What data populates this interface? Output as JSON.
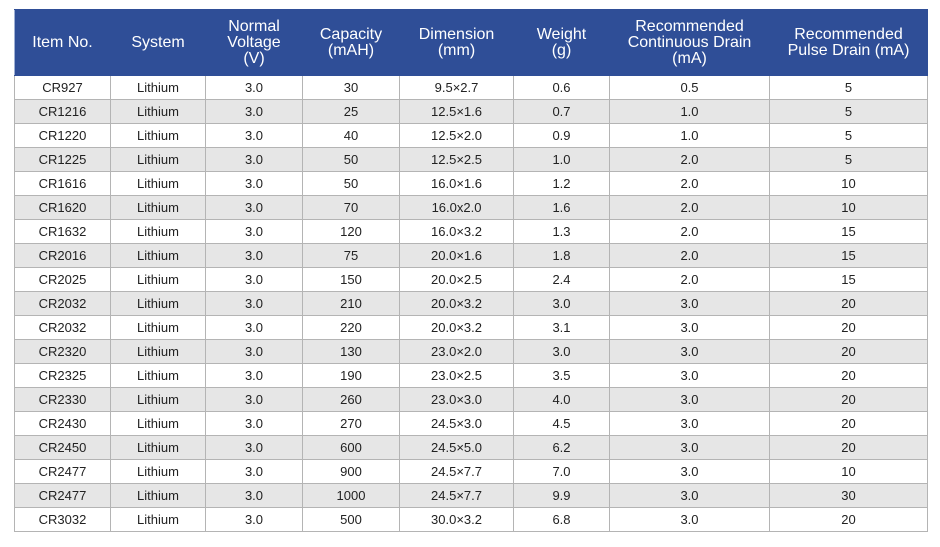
{
  "table": {
    "header": [
      "Item No.",
      "System",
      "Normal\nVoltage\n(V)",
      "Capacity\n(mAH)",
      "Dimension\n(mm)",
      "Weight\n(g)",
      "Recommended\nContinuous Drain\n(mA)",
      "Recommended\nPulse Drain (mA)"
    ],
    "rows": [
      [
        "CR927",
        "Lithium",
        "3.0",
        "30",
        "9.5×2.7",
        "0.6",
        "0.5",
        "5"
      ],
      [
        "CR1216",
        "Lithium",
        "3.0",
        "25",
        "12.5×1.6",
        "0.7",
        "1.0",
        "5"
      ],
      [
        "CR1220",
        "Lithium",
        "3.0",
        "40",
        "12.5×2.0",
        "0.9",
        "1.0",
        "5"
      ],
      [
        "CR1225",
        "Lithium",
        "3.0",
        "50",
        "12.5×2.5",
        "1.0",
        "2.0",
        "5"
      ],
      [
        "CR1616",
        "Lithium",
        "3.0",
        "50",
        "16.0×1.6",
        "1.2",
        "2.0",
        "10"
      ],
      [
        "CR1620",
        "Lithium",
        "3.0",
        "70",
        "16.0x2.0",
        "1.6",
        "2.0",
        "10"
      ],
      [
        "CR1632",
        "Lithium",
        "3.0",
        "120",
        "16.0×3.2",
        "1.3",
        "2.0",
        "15"
      ],
      [
        "CR2016",
        "Lithium",
        "3.0",
        "75",
        "20.0×1.6",
        "1.8",
        "2.0",
        "15"
      ],
      [
        "CR2025",
        "Lithium",
        "3.0",
        "150",
        "20.0×2.5",
        "2.4",
        "2.0",
        "15"
      ],
      [
        "CR2032",
        "Lithium",
        "3.0",
        "210",
        "20.0×3.2",
        "3.0",
        "3.0",
        "20"
      ],
      [
        "CR2032",
        "Lithium",
        "3.0",
        "220",
        "20.0×3.2",
        "3.1",
        "3.0",
        "20"
      ],
      [
        "CR2320",
        "Lithium",
        "3.0",
        "130",
        "23.0×2.0",
        "3.0",
        "3.0",
        "20"
      ],
      [
        "CR2325",
        "Lithium",
        "3.0",
        "190",
        "23.0×2.5",
        "3.5",
        "3.0",
        "20"
      ],
      [
        "CR2330",
        "Lithium",
        "3.0",
        "260",
        "23.0×3.0",
        "4.0",
        "3.0",
        "20"
      ],
      [
        "CR2430",
        "Lithium",
        "3.0",
        "270",
        "24.5×3.0",
        "4.5",
        "3.0",
        "20"
      ],
      [
        "CR2450",
        "Lithium",
        "3.0",
        "600",
        "24.5×5.0",
        "6.2",
        "3.0",
        "20"
      ],
      [
        "CR2477",
        "Lithium",
        "3.0",
        "900",
        "24.5×7.7",
        "7.0",
        "3.0",
        "10"
      ],
      [
        "CR2477",
        "Lithium",
        "3.0",
        "1000",
        "24.5×7.7",
        "9.9",
        "3.0",
        "30"
      ],
      [
        "CR3032",
        "Lithium",
        "3.0",
        "500",
        "30.0×3.2",
        "6.8",
        "3.0",
        "20"
      ]
    ]
  }
}
